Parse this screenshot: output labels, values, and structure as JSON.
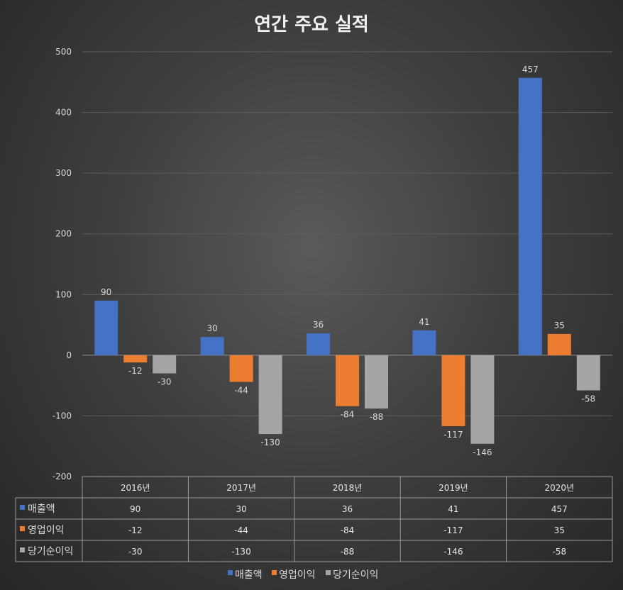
{
  "chart_data": {
    "type": "bar",
    "title": "연간 주요 실적",
    "categories": [
      "2016년",
      "2017년",
      "2018년",
      "2019년",
      "2020년"
    ],
    "series": [
      {
        "name": "매출액",
        "color": "#4472c4",
        "values": [
          90,
          30,
          36,
          41,
          457
        ]
      },
      {
        "name": "영업이익",
        "color": "#ed7d31",
        "values": [
          -12,
          -44,
          -84,
          -117,
          35
        ]
      },
      {
        "name": "당기순이익",
        "color": "#a5a5a5",
        "values": [
          -30,
          -130,
          -88,
          -146,
          -58
        ]
      }
    ],
    "yticks": [
      500,
      400,
      300,
      200,
      100,
      0,
      -100,
      -200
    ],
    "ylim": [
      -200,
      500
    ],
    "grid": true,
    "data_table": true,
    "legend_position": "bottom"
  }
}
